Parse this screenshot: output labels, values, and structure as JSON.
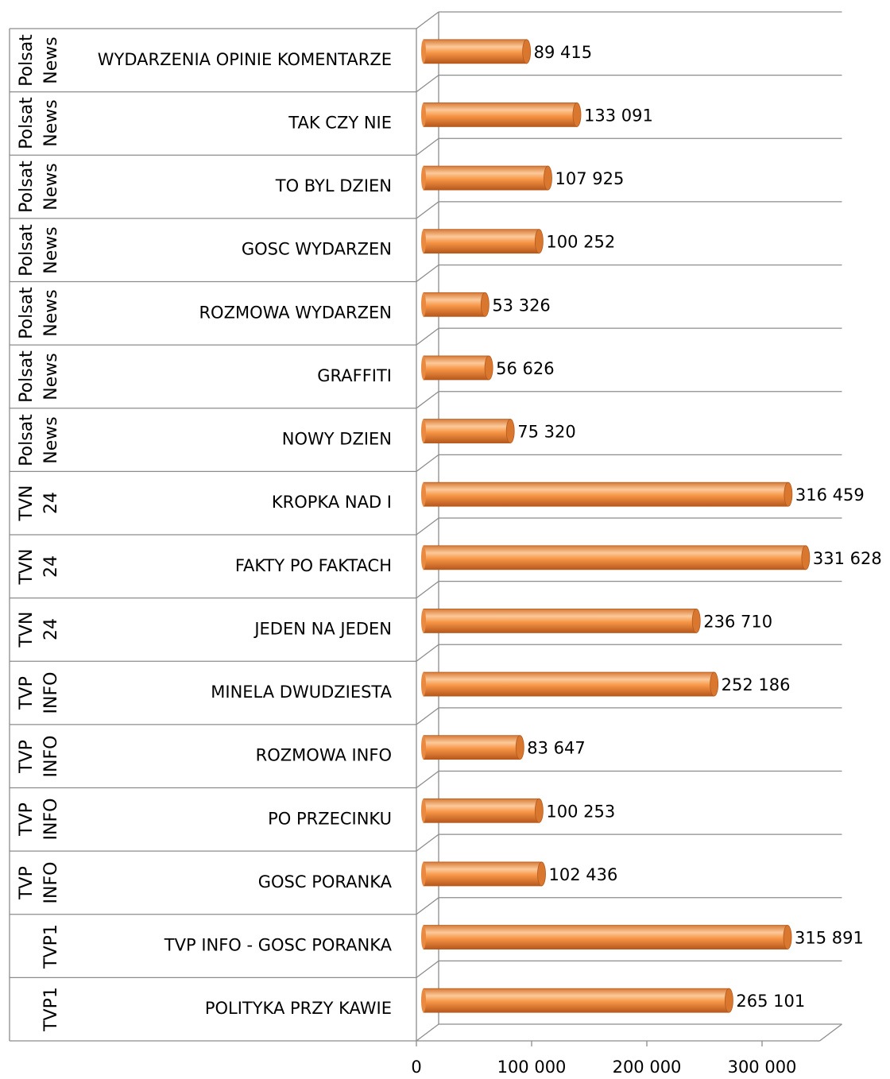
{
  "chart_data": {
    "type": "bar",
    "orientation": "horizontal",
    "groups": [
      "Polsat News",
      "Polsat News",
      "Polsat News",
      "Polsat News",
      "Polsat News",
      "Polsat News",
      "Polsat News",
      "TVN 24",
      "TVN 24",
      "TVN 24",
      "TVP INFO",
      "TVP INFO",
      "TVP INFO",
      "TVP INFO",
      "TVP1",
      "TVP1"
    ],
    "categories": [
      "WYDARZENIA OPINIE KOMENTARZE",
      "TAK CZY NIE",
      "TO BYL DZIEN",
      "GOSC WYDARZEN",
      "ROZMOWA WYDARZEN",
      "GRAFFITI",
      "NOWY DZIEN",
      "KROPKA NAD I",
      "FAKTY PO FAKTACH",
      "JEDEN NA JEDEN",
      "MINELA DWUDZIESTA",
      "ROZMOWA INFO",
      "PO PRZECINKU",
      "GOSC PORANKA",
      "TVP INFO - GOSC PORANKA",
      "POLITYKA PRZY KAWIE"
    ],
    "values": [
      89415,
      133091,
      107925,
      100252,
      53326,
      56626,
      75320,
      316459,
      331628,
      236710,
      252186,
      83647,
      100253,
      102436,
      315891,
      265101
    ],
    "value_labels": [
      "89 415",
      "133 091",
      "107 925",
      "100 252",
      "53 326",
      "56 626",
      "75 320",
      "316 459",
      "331 628",
      "236 710",
      "252 186",
      "83 647",
      "100 253",
      "102 436",
      "315 891",
      "265 101"
    ],
    "color": "#f79646",
    "xlim": [
      0,
      350000
    ],
    "xticks": [
      0,
      {
        "value": 100000,
        "label": "100 000"
      },
      {
        "value": 200000,
        "label": "200 000"
      },
      {
        "value": 300000,
        "label": "300 000"
      }
    ]
  }
}
